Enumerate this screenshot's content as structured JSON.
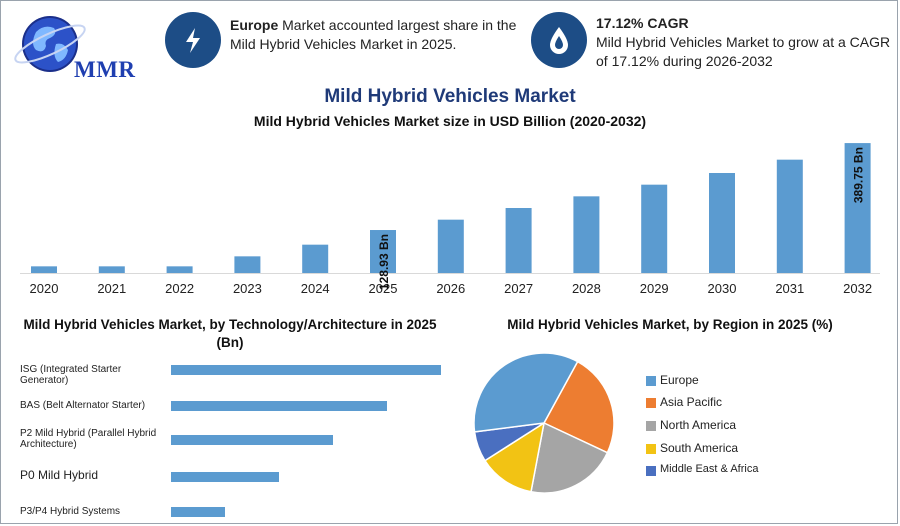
{
  "logo": {
    "text": "MMR"
  },
  "info": {
    "card1": {
      "bold": "Europe",
      "text": " Market accounted largest share in the Mild Hybrid Vehicles Market in 2025.",
      "icon": "lightning-icon"
    },
    "card2": {
      "bold": "17.12% CAGR",
      "text": "Mild Hybrid Vehicles Market to grow at a CAGR of 17.12% during 2026-2032",
      "icon": "drop-icon"
    }
  },
  "title": "Mild Hybrid Vehicles Market",
  "colors": {
    "bar": "#5b9bd0",
    "accent": "#1d4d86",
    "title": "#1f3a78"
  },
  "chart_data": [
    {
      "type": "bar",
      "title": "Mild Hybrid Vehicles Market size in USD Billion (2020-2032)",
      "categories": [
        "2020",
        "2021",
        "2022",
        "2023",
        "2024",
        "2025",
        "2026",
        "2027",
        "2028",
        "2029",
        "2030",
        "2031",
        "2032"
      ],
      "values": [
        20,
        20,
        20,
        50,
        85,
        128.93,
        160,
        195,
        230,
        265,
        300,
        340,
        389.75
      ],
      "ylim": [
        0,
        390
      ],
      "data_labels": [
        {
          "index": 5,
          "text": "128.93 Bn"
        },
        {
          "index": 12,
          "text": "389.75 Bn"
        }
      ],
      "grid": false
    },
    {
      "type": "bar",
      "orientation": "horizontal",
      "title": "Mild Hybrid Vehicles Market, by Technology/Architecture in 2025 (Bn)",
      "categories": [
        "ISG (Integrated Starter Generator)",
        "BAS (Belt Alternator Starter)",
        "P2 Mild Hybrid (Parallel Hybrid Architecture)",
        "P0 Mild Hybrid",
        "P3/P4 Hybrid Systems"
      ],
      "values": [
        50,
        40,
        30,
        20,
        10
      ],
      "xlim": [
        0,
        50
      ]
    },
    {
      "type": "pie",
      "title": "Mild Hybrid Vehicles Market, by Region in 2025 (%)",
      "labels": [
        "Europe",
        "Asia Pacific",
        "North America",
        "South America",
        "Middle East & Africa"
      ],
      "values": [
        35,
        24,
        21,
        13,
        7
      ],
      "colors": [
        "#5b9bd0",
        "#ed7d31",
        "#a5a5a5",
        "#f2c314",
        "#4a6fc0"
      ],
      "legend": "right"
    }
  ]
}
